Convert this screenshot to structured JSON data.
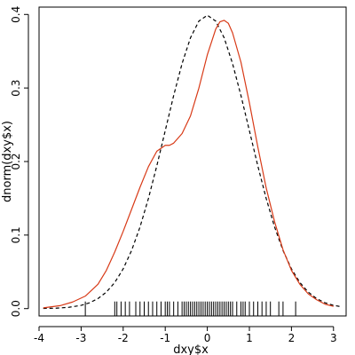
{
  "chart_data": {
    "type": "line",
    "xlabel": "dxy$x",
    "ylabel": "dnorm(dxy$x)",
    "xlim": [
      -4,
      3.3
    ],
    "ylim": [
      -0.01,
      0.41
    ],
    "xticks": [
      -4,
      -3,
      -2,
      -1,
      0,
      1,
      2,
      3
    ],
    "xtick_labels": [
      "-4",
      "-3",
      "-2",
      "-1",
      "0",
      "1",
      "2",
      "3"
    ],
    "yticks": [
      0.0,
      0.1,
      0.2,
      0.3,
      0.4
    ],
    "ytick_labels": [
      "0.0",
      "0.1",
      "0.2",
      "0.3",
      "0.4"
    ],
    "grid": false,
    "series": [
      {
        "style": "dashed",
        "color": "#000000",
        "x": [
          -3.9,
          -3.6,
          -3.3,
          -3.0,
          -2.8,
          -2.6,
          -2.4,
          -2.2,
          -2.0,
          -1.8,
          -1.6,
          -1.4,
          -1.2,
          -1.0,
          -0.8,
          -0.6,
          -0.4,
          -0.2,
          0.0,
          0.2,
          0.4,
          0.6,
          0.8,
          1.0,
          1.2,
          1.4,
          1.6,
          1.8,
          2.0,
          2.2,
          2.4,
          2.6,
          2.8,
          3.0,
          3.2
        ],
        "values": [
          0.0002,
          0.0006,
          0.0017,
          0.0044,
          0.0079,
          0.0136,
          0.0224,
          0.0355,
          0.054,
          0.079,
          0.1109,
          0.1497,
          0.1942,
          0.242,
          0.2897,
          0.3332,
          0.3683,
          0.391,
          0.3989,
          0.391,
          0.3683,
          0.3332,
          0.2897,
          0.242,
          0.1942,
          0.1497,
          0.1109,
          0.079,
          0.054,
          0.0355,
          0.0224,
          0.0136,
          0.0079,
          0.0044,
          0.0024
        ]
      },
      {
        "style": "solid",
        "color": "#d83a17",
        "x": [
          -3.9,
          -3.5,
          -3.2,
          -2.9,
          -2.6,
          -2.4,
          -2.2,
          -2.0,
          -1.8,
          -1.6,
          -1.4,
          -1.2,
          -1.0,
          -0.9,
          -0.8,
          -0.6,
          -0.4,
          -0.2,
          0.0,
          0.2,
          0.3,
          0.4,
          0.5,
          0.6,
          0.8,
          1.0,
          1.2,
          1.4,
          1.6,
          1.8,
          2.0,
          2.2,
          2.4,
          2.6,
          2.8,
          3.0
        ],
        "values": [
          0.001,
          0.004,
          0.009,
          0.017,
          0.033,
          0.052,
          0.077,
          0.105,
          0.135,
          0.165,
          0.193,
          0.214,
          0.222,
          0.222,
          0.225,
          0.238,
          0.262,
          0.3,
          0.345,
          0.38,
          0.39,
          0.392,
          0.388,
          0.375,
          0.335,
          0.28,
          0.22,
          0.164,
          0.118,
          0.08,
          0.052,
          0.033,
          0.02,
          0.012,
          0.006,
          0.003
        ]
      }
    ],
    "rug": [
      -2.9,
      -2.2,
      -2.15,
      -2.05,
      -1.95,
      -1.85,
      -1.7,
      -1.6,
      -1.5,
      -1.4,
      -1.3,
      -1.2,
      -1.1,
      -1.0,
      -0.95,
      -0.9,
      -0.8,
      -0.7,
      -0.6,
      -0.55,
      -0.5,
      -0.45,
      -0.4,
      -0.35,
      -0.3,
      -0.25,
      -0.2,
      -0.15,
      -0.1,
      -0.05,
      0.0,
      0.05,
      0.1,
      0.15,
      0.2,
      0.25,
      0.3,
      0.35,
      0.4,
      0.45,
      0.5,
      0.55,
      0.6,
      0.7,
      0.8,
      0.85,
      0.9,
      1.0,
      1.1,
      1.2,
      1.3,
      1.4,
      1.5,
      1.7,
      1.8,
      2.1
    ]
  }
}
